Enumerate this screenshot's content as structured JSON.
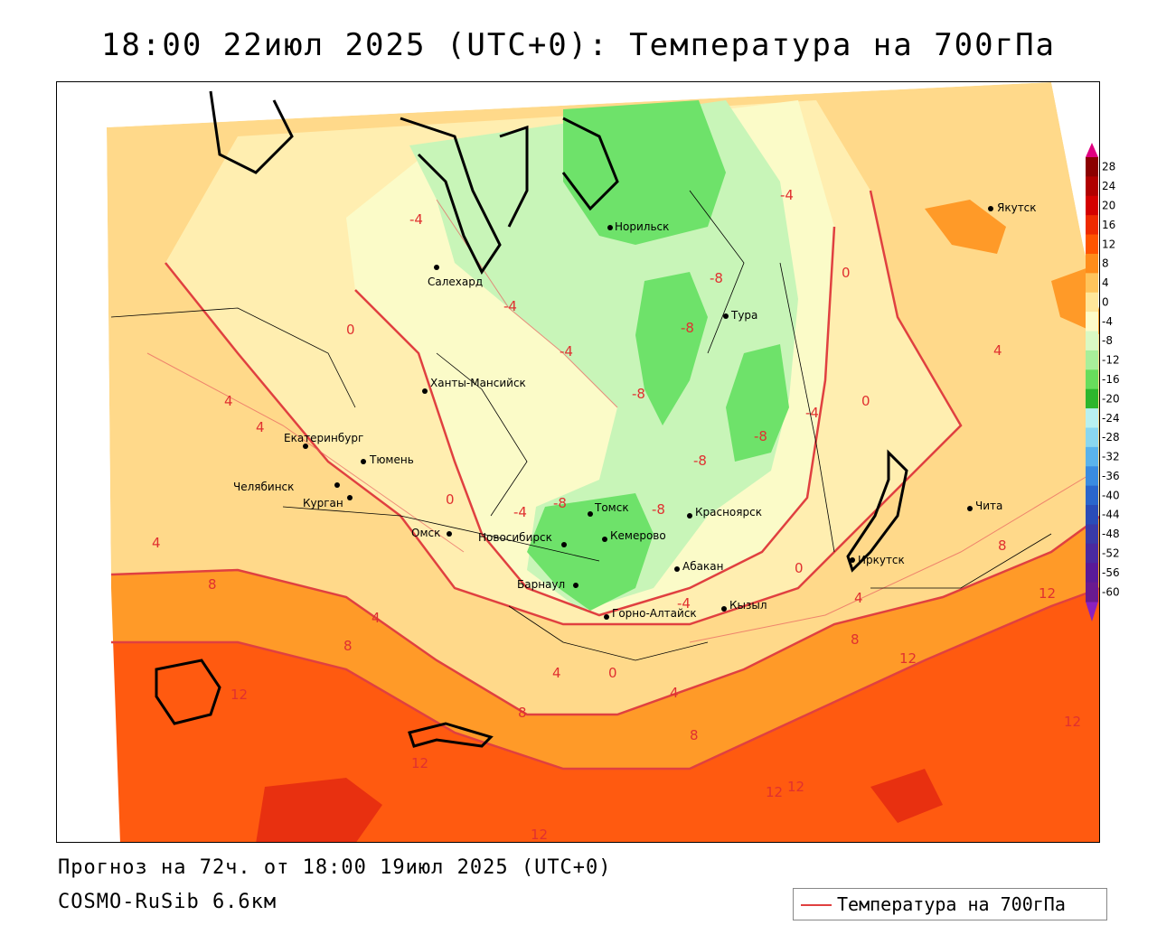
{
  "title": "18:00 22июл 2025 (UTC+0): Температура на 700гПа",
  "footer": {
    "forecast": "Прогноз на 72ч. от 18:00 19июл 2025 (UTC+0)",
    "model": "COSMO-RuSib 6.6км",
    "legend_label": "Температура на 700гПа",
    "legend_color": "#e04040"
  },
  "cities": [
    {
      "name": "Норильск"
    },
    {
      "name": "Салехард"
    },
    {
      "name": "Тура"
    },
    {
      "name": "Якутск"
    },
    {
      "name": "Ханты-Мансийск"
    },
    {
      "name": "Екатеринбург"
    },
    {
      "name": "Тюмень"
    },
    {
      "name": "Челябинск"
    },
    {
      "name": "Курган"
    },
    {
      "name": "Омск"
    },
    {
      "name": "Новосибирск"
    },
    {
      "name": "Томск"
    },
    {
      "name": "Кемерово"
    },
    {
      "name": "Красноярск"
    },
    {
      "name": "Абакан"
    },
    {
      "name": "Барнаул"
    },
    {
      "name": "Горно-Алтайск"
    },
    {
      "name": "Кызыл"
    },
    {
      "name": "Иркутск"
    },
    {
      "name": "Чита"
    }
  ],
  "isotherm_labels": [
    "-4",
    "-4",
    "-4",
    "-4",
    "-8",
    "-8",
    "-8",
    "-8",
    "-8",
    "-8",
    "-8",
    "-4",
    "-4",
    "-4",
    "0",
    "0",
    "0",
    "0",
    "0",
    "0",
    "4",
    "4",
    "4",
    "4",
    "4",
    "4",
    "4",
    "4",
    "8",
    "8",
    "8",
    "8",
    "8",
    "8",
    "12",
    "12",
    "12",
    "12",
    "12",
    "12",
    "12",
    "12"
  ],
  "colorbar": {
    "ticks": [
      "28",
      "24",
      "20",
      "16",
      "12",
      "8",
      "4",
      "0",
      "-4",
      "-8",
      "-12",
      "-16",
      "-20",
      "-24",
      "-28",
      "-32",
      "-36",
      "-40",
      "-44",
      "-48",
      "-52",
      "-56",
      "-60"
    ],
    "colors": [
      "#8b0000",
      "#b00000",
      "#d40000",
      "#ee2a00",
      "#ff5400",
      "#ff8c1a",
      "#ffc45c",
      "#ffe69a",
      "#fdfbc8",
      "#d9f9c4",
      "#a8ef9a",
      "#68dd5c",
      "#2db62d",
      "#b8f0f0",
      "#8ad7f0",
      "#5ab3ec",
      "#3a8be0",
      "#2a66cc",
      "#2a4cb8",
      "#3a3aa8",
      "#4a2aa0",
      "#5a1a98",
      "#6a1a90"
    ],
    "top_arrow_color": "#e00080",
    "bottom_arrow_color": "#8a20c0"
  }
}
